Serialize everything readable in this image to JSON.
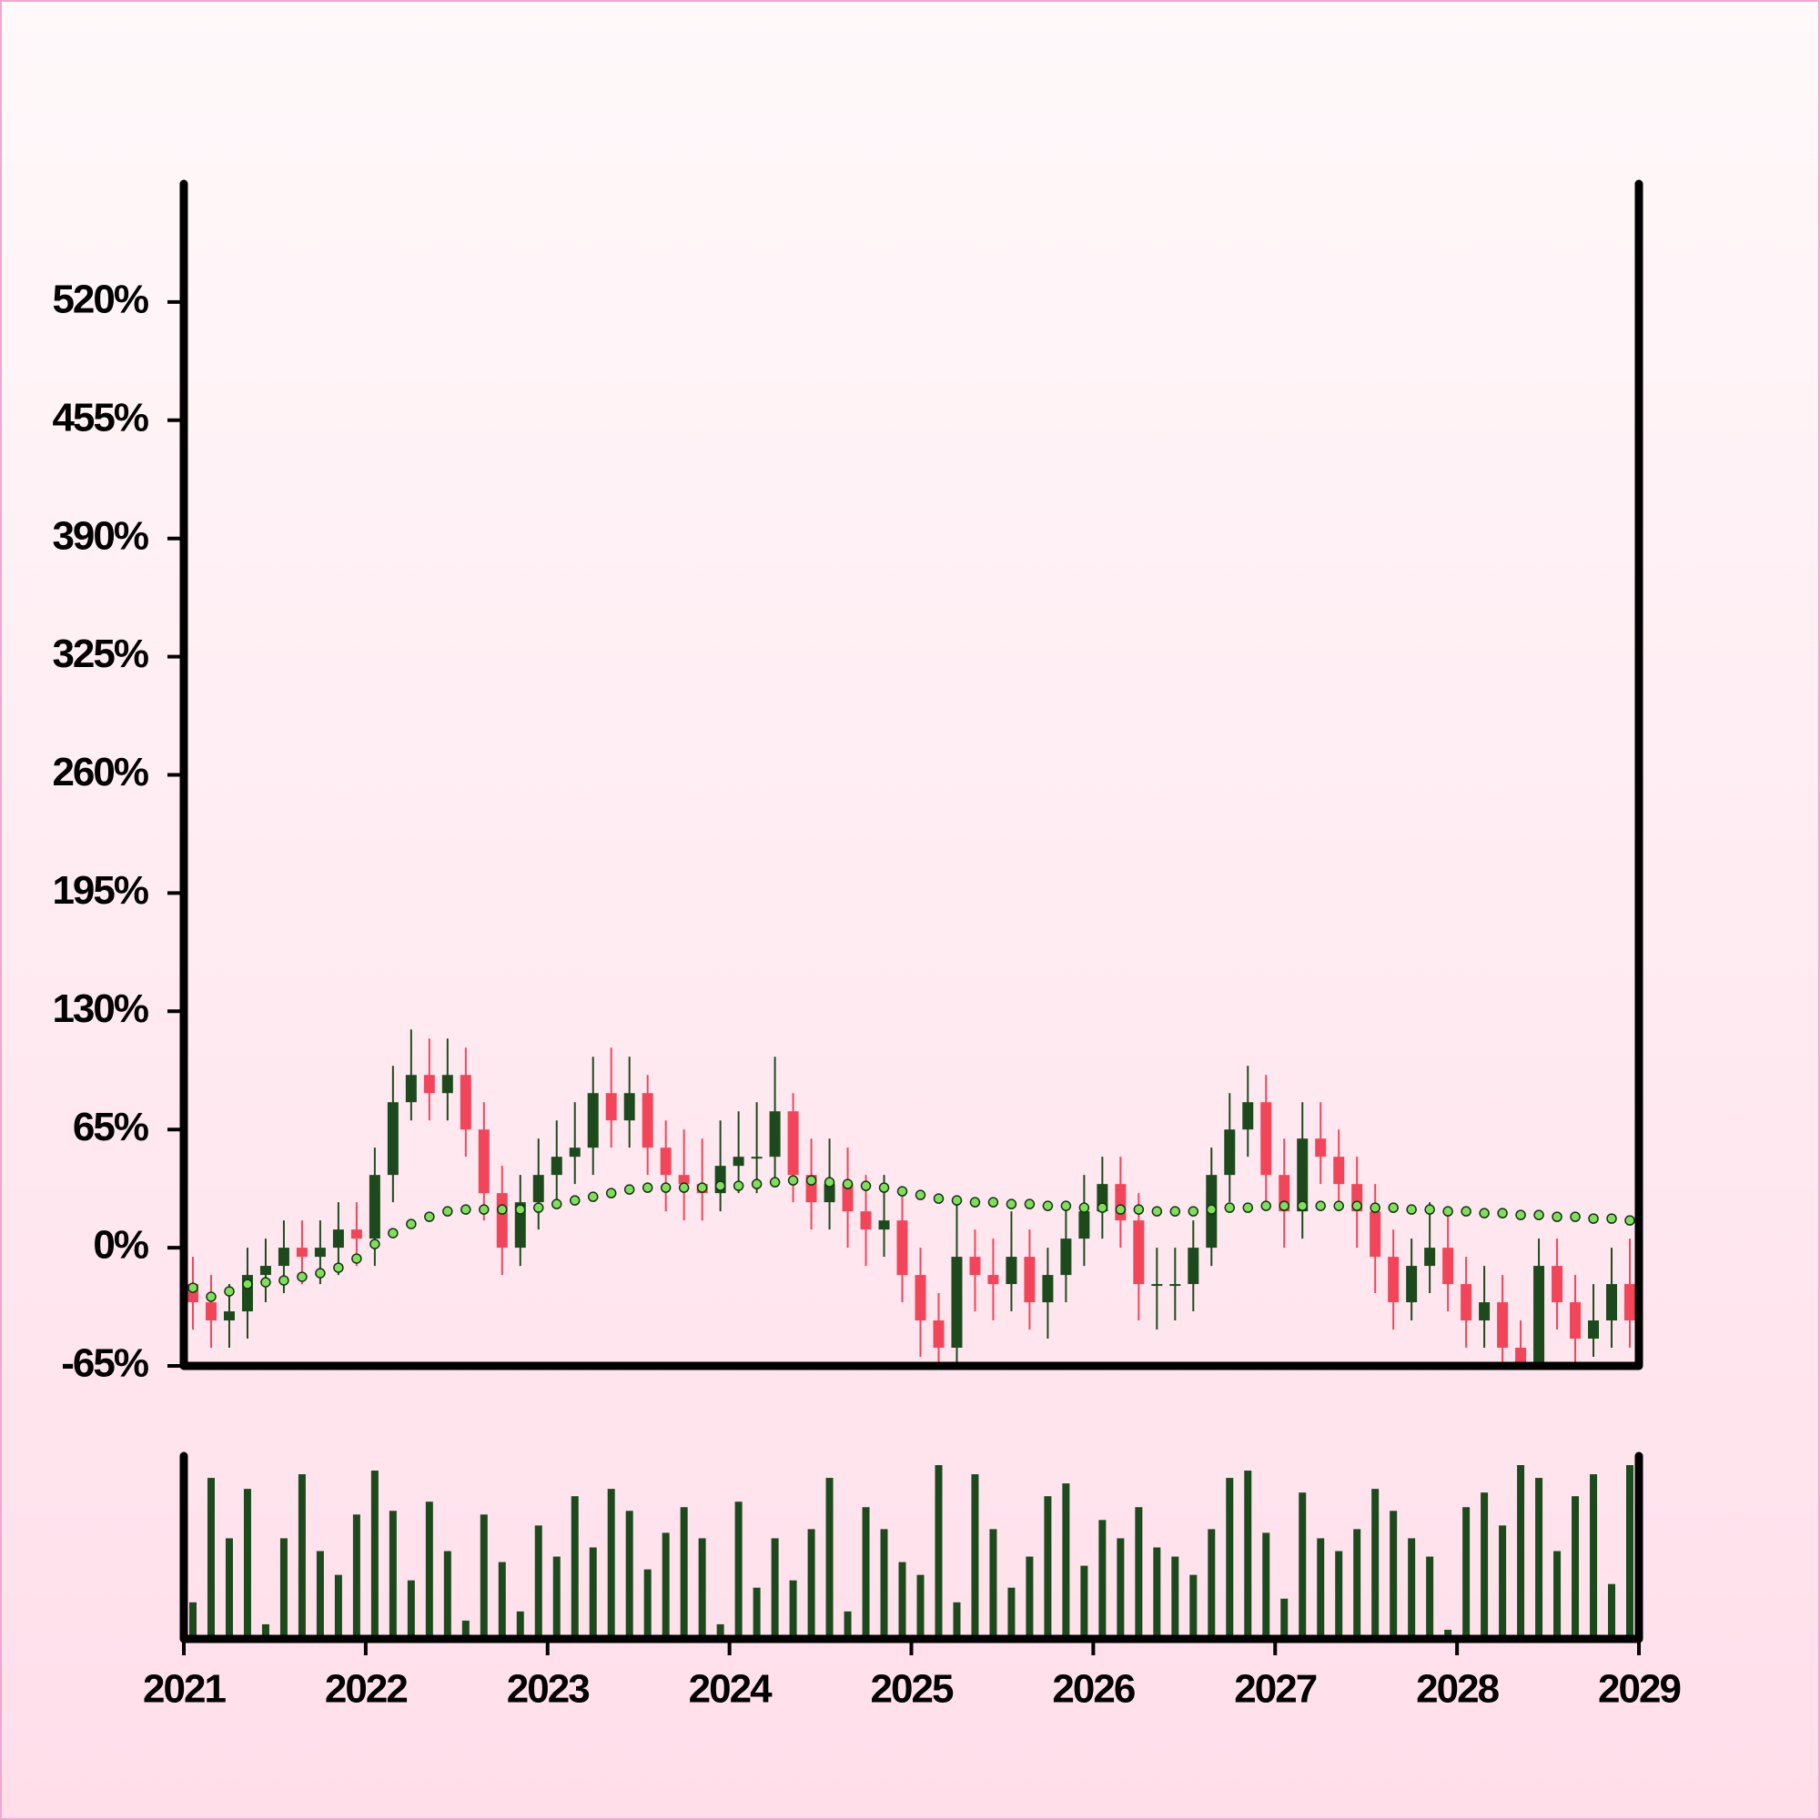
{
  "chart_data": {
    "type": "candlestick",
    "x": [
      2021.05,
      2021.15,
      2021.25,
      2021.35,
      2021.45,
      2021.55,
      2021.65,
      2021.75,
      2021.85,
      2021.95,
      2022.05,
      2022.15,
      2022.25,
      2022.35,
      2022.45,
      2022.55,
      2022.65,
      2022.75,
      2022.85,
      2022.95,
      2023.05,
      2023.15,
      2023.25,
      2023.35,
      2023.45,
      2023.55,
      2023.65,
      2023.75,
      2023.85,
      2023.95,
      2024.05,
      2024.15,
      2024.25,
      2024.35,
      2024.45,
      2024.55,
      2024.65,
      2024.75,
      2024.85,
      2024.95,
      2025.05,
      2025.15,
      2025.25,
      2025.35,
      2025.45,
      2025.55,
      2025.65,
      2025.75,
      2025.85,
      2025.95,
      2026.05,
      2026.15,
      2026.25,
      2026.35,
      2026.45,
      2026.55,
      2026.65,
      2026.75,
      2026.85,
      2026.95,
      2027.05,
      2027.15,
      2027.25,
      2027.35,
      2027.45,
      2027.55,
      2027.65,
      2027.75,
      2027.85,
      2027.95,
      2028.05,
      2028.15,
      2028.25,
      2028.35,
      2028.45,
      2028.55,
      2028.65,
      2028.75,
      2028.85,
      2028.95
    ],
    "open": [
      -20,
      -30,
      -40,
      -35,
      -15,
      -10,
      0,
      -5,
      0,
      10,
      5,
      40,
      80,
      95,
      85,
      95,
      65,
      30,
      0,
      25,
      40,
      50,
      55,
      85,
      70,
      85,
      55,
      40,
      35,
      30,
      45,
      50,
      50,
      75,
      40,
      25,
      35,
      20,
      10,
      15,
      -15,
      -40,
      -55,
      -5,
      -15,
      -20,
      -5,
      -30,
      -15,
      5,
      20,
      35,
      15,
      -20,
      -20,
      -20,
      0,
      40,
      65,
      80,
      40,
      20,
      60,
      50,
      35,
      20,
      -5,
      -30,
      -10,
      0,
      -20,
      -40,
      -30,
      -55,
      -65,
      -10,
      -30,
      -50,
      -40,
      -20
    ],
    "high": [
      -5,
      -15,
      -20,
      0,
      5,
      15,
      15,
      15,
      25,
      25,
      55,
      100,
      120,
      115,
      115,
      110,
      80,
      45,
      40,
      60,
      70,
      80,
      105,
      110,
      105,
      95,
      70,
      65,
      60,
      70,
      75,
      80,
      105,
      85,
      60,
      60,
      55,
      40,
      40,
      30,
      0,
      -25,
      25,
      10,
      5,
      20,
      10,
      0,
      25,
      40,
      50,
      50,
      30,
      0,
      0,
      15,
      55,
      85,
      100,
      95,
      60,
      80,
      80,
      65,
      50,
      35,
      10,
      5,
      25,
      20,
      -5,
      -10,
      -15,
      -40,
      5,
      5,
      -15,
      -20,
      0,
      5
    ],
    "low": [
      -45,
      -55,
      -55,
      -50,
      -30,
      -25,
      -20,
      -20,
      -15,
      -10,
      -10,
      25,
      70,
      70,
      70,
      50,
      15,
      -15,
      -10,
      10,
      25,
      35,
      40,
      55,
      55,
      40,
      20,
      15,
      15,
      20,
      30,
      30,
      35,
      25,
      10,
      10,
      0,
      -10,
      -5,
      -30,
      -60,
      -65,
      -65,
      -35,
      -40,
      -35,
      -45,
      -50,
      -30,
      -10,
      5,
      0,
      -40,
      -45,
      -40,
      -35,
      -10,
      25,
      50,
      25,
      0,
      5,
      35,
      20,
      0,
      -25,
      -45,
      -40,
      -25,
      -35,
      -55,
      -55,
      -65,
      -65,
      -65,
      -45,
      -65,
      -60,
      -55,
      -55
    ],
    "close": [
      -30,
      -40,
      -35,
      -15,
      -10,
      0,
      -5,
      0,
      10,
      5,
      40,
      80,
      95,
      85,
      95,
      65,
      30,
      0,
      25,
      40,
      50,
      55,
      85,
      70,
      85,
      55,
      40,
      35,
      30,
      45,
      50,
      50,
      75,
      40,
      25,
      35,
      20,
      10,
      15,
      -15,
      -40,
      -55,
      -5,
      -15,
      -20,
      -5,
      -30,
      -15,
      5,
      20,
      35,
      15,
      -20,
      -20,
      -20,
      0,
      40,
      65,
      80,
      40,
      20,
      60,
      50,
      35,
      20,
      -5,
      -30,
      -10,
      0,
      -20,
      -40,
      -30,
      -55,
      -65,
      -10,
      -30,
      -50,
      -40,
      -20,
      -40
    ],
    "volume": [
      20,
      88,
      55,
      82,
      8,
      55,
      90,
      48,
      35,
      68,
      92,
      70,
      32,
      75,
      48,
      10,
      68,
      42,
      15,
      62,
      45,
      78,
      50,
      82,
      70,
      38,
      58,
      72,
      55,
      8,
      75,
      28,
      55,
      32,
      60,
      88,
      15,
      72,
      60,
      42,
      35,
      95,
      20,
      90,
      60,
      28,
      45,
      78,
      85,
      40,
      65,
      55,
      72,
      50,
      45,
      35,
      60,
      88,
      92,
      58,
      22,
      80,
      55,
      48,
      60,
      82,
      70,
      55,
      45,
      5,
      72,
      80,
      62,
      95,
      88,
      48,
      78,
      90,
      30,
      95
    ],
    "volume_color": "#1d4a1d",
    "moving_average": {
      "color": "#7ee05a",
      "values": [
        -22,
        -27,
        -24,
        -20,
        -19,
        -18,
        -16,
        -14,
        -11,
        -6,
        2,
        8,
        13,
        17,
        20,
        21,
        21,
        21,
        21,
        22,
        24,
        26,
        28,
        30,
        32,
        33,
        33,
        33,
        33,
        34,
        34,
        35,
        36,
        37,
        37,
        36,
        35,
        34,
        33,
        31,
        29,
        27,
        26,
        25,
        25,
        24,
        24,
        23,
        23,
        22,
        22,
        21,
        21,
        20,
        20,
        20,
        21,
        22,
        22,
        23,
        23,
        23,
        23,
        23,
        23,
        22,
        22,
        21,
        21,
        20,
        20,
        19,
        19,
        18,
        18,
        17,
        17,
        16,
        16,
        15
      ]
    },
    "up_color": "#1d4a1d",
    "down_color": "#f2455a",
    "xlim": [
      2021,
      2029
    ],
    "xticks": [
      2021,
      2022,
      2023,
      2024,
      2025,
      2026,
      2027,
      2028,
      2029
    ],
    "ylim": [
      -65,
      585
    ],
    "yticks": [
      {
        "value": -65,
        "label": "-65%"
      },
      {
        "value": 0,
        "label": "0%"
      },
      {
        "value": 65,
        "label": "65%"
      },
      {
        "value": 130,
        "label": "130%"
      },
      {
        "value": 195,
        "label": "195%"
      },
      {
        "value": 260,
        "label": "260%"
      },
      {
        "value": 325,
        "label": "325%"
      },
      {
        "value": 390,
        "label": "390%"
      },
      {
        "value": 455,
        "label": "455%"
      },
      {
        "value": 520,
        "label": "520%"
      }
    ]
  }
}
